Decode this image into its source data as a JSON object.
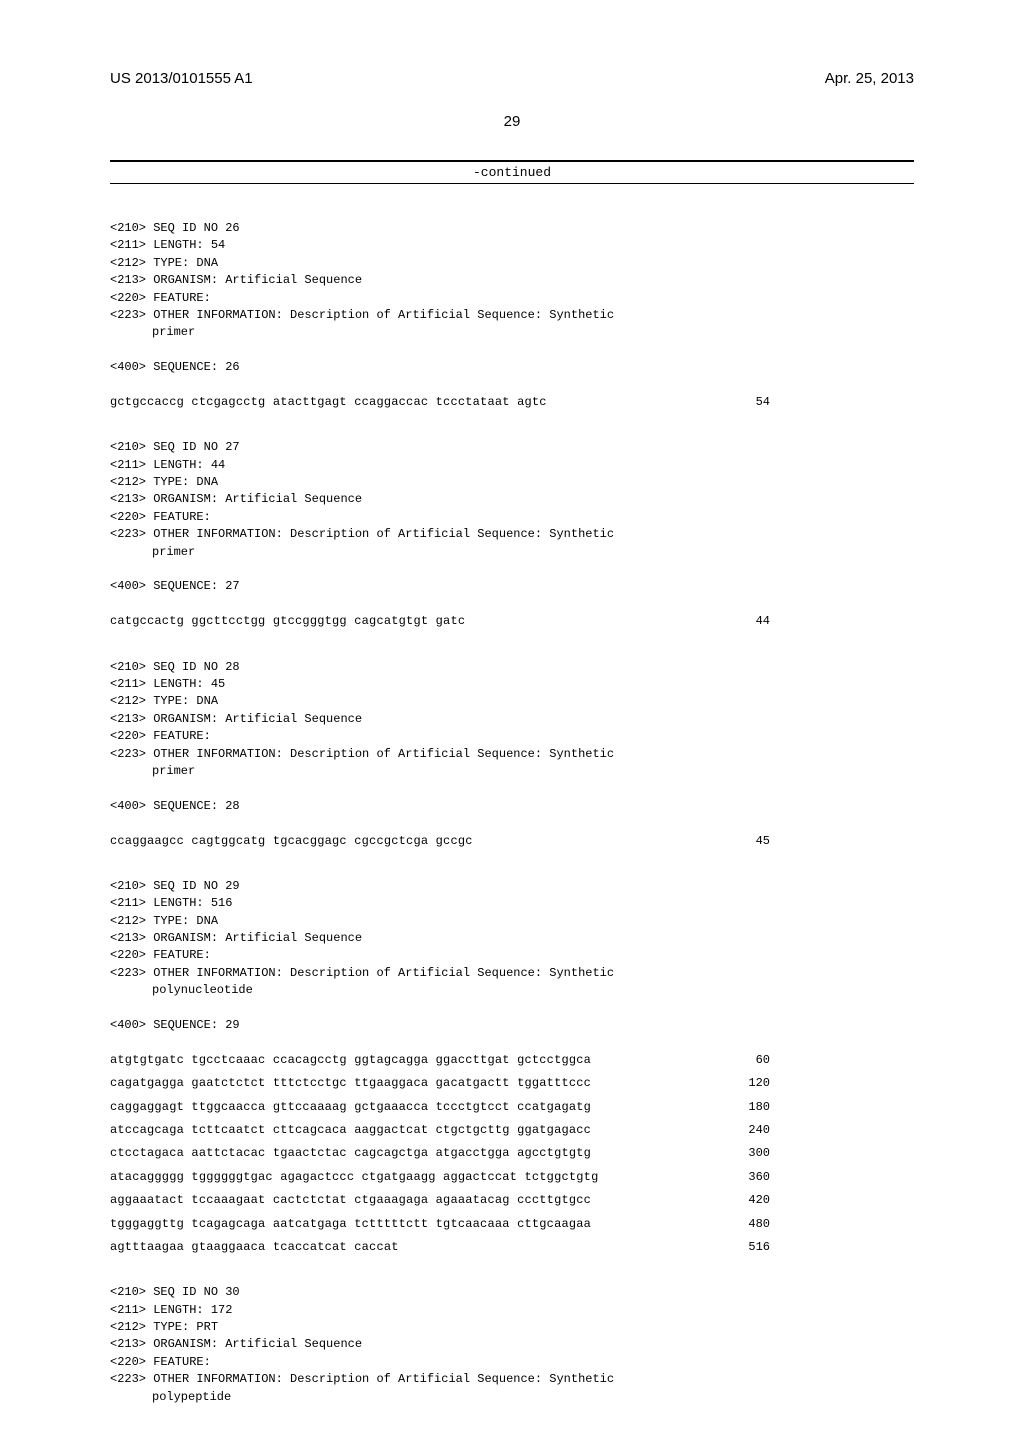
{
  "header": {
    "publication_number": "US 2013/0101555 A1",
    "publication_date": "Apr. 25, 2013"
  },
  "page_number": "29",
  "continued_label": "-continued",
  "entries": [
    {
      "meta": {
        "seq_id": "<210> SEQ ID NO 26",
        "length": "<211> LENGTH: 54",
        "type": "<212> TYPE: DNA",
        "organism": "<213> ORGANISM: Artificial Sequence",
        "feature": "<220> FEATURE:",
        "other_info": "<223> OTHER INFORMATION: Description of Artificial Sequence: Synthetic",
        "other_info_cont": "primer"
      },
      "seq_header": "<400> SEQUENCE: 26",
      "rows": [
        {
          "seq": "gctgccaccg ctcgagcctg atacttgagt ccaggaccac tccctataat agtc",
          "pos": "54"
        }
      ]
    },
    {
      "meta": {
        "seq_id": "<210> SEQ ID NO 27",
        "length": "<211> LENGTH: 44",
        "type": "<212> TYPE: DNA",
        "organism": "<213> ORGANISM: Artificial Sequence",
        "feature": "<220> FEATURE:",
        "other_info": "<223> OTHER INFORMATION: Description of Artificial Sequence: Synthetic",
        "other_info_cont": "primer"
      },
      "seq_header": "<400> SEQUENCE: 27",
      "rows": [
        {
          "seq": "catgccactg ggcttcctgg gtccgggtgg cagcatgtgt gatc",
          "pos": "44"
        }
      ]
    },
    {
      "meta": {
        "seq_id": "<210> SEQ ID NO 28",
        "length": "<211> LENGTH: 45",
        "type": "<212> TYPE: DNA",
        "organism": "<213> ORGANISM: Artificial Sequence",
        "feature": "<220> FEATURE:",
        "other_info": "<223> OTHER INFORMATION: Description of Artificial Sequence: Synthetic",
        "other_info_cont": "primer"
      },
      "seq_header": "<400> SEQUENCE: 28",
      "rows": [
        {
          "seq": "ccaggaagcc cagtggcatg tgcacggagc cgccgctcga gccgc",
          "pos": "45"
        }
      ]
    },
    {
      "meta": {
        "seq_id": "<210> SEQ ID NO 29",
        "length": "<211> LENGTH: 516",
        "type": "<212> TYPE: DNA",
        "organism": "<213> ORGANISM: Artificial Sequence",
        "feature": "<220> FEATURE:",
        "other_info": "<223> OTHER INFORMATION: Description of Artificial Sequence: Synthetic",
        "other_info_cont": "polynucleotide"
      },
      "seq_header": "<400> SEQUENCE: 29",
      "rows": [
        {
          "seq": "atgtgtgatc tgcctcaaac ccacagcctg ggtagcagga ggaccttgat gctcctggca",
          "pos": "60"
        },
        {
          "seq": "cagatgagga gaatctctct tttctcctgc ttgaaggaca gacatgactt tggatttccc",
          "pos": "120"
        },
        {
          "seq": "caggaggagt ttggcaacca gttccaaaag gctgaaacca tccctgtcct ccatgagatg",
          "pos": "180"
        },
        {
          "seq": "atccagcaga tcttcaatct cttcagcaca aaggactcat ctgctgcttg ggatgagacc",
          "pos": "240"
        },
        {
          "seq": "ctcctagaca aattctacac tgaactctac cagcagctga atgacctgga agcctgtgtg",
          "pos": "300"
        },
        {
          "seq": "atacaggggg tggggggtgac agagactccc ctgatgaagg aggactccat tctggctgtg",
          "pos": "360"
        },
        {
          "seq": "aggaaatact tccaaagaat cactctctat ctgaaagaga agaaatacag cccttgtgcc",
          "pos": "420"
        },
        {
          "seq": "tgggaggttg tcagagcaga aatcatgaga tctttttctt tgtcaacaaa cttgcaagaa",
          "pos": "480"
        },
        {
          "seq": "agtttaagaa gtaaggaaca tcaccatcat caccat",
          "pos": "516"
        }
      ]
    },
    {
      "meta": {
        "seq_id": "<210> SEQ ID NO 30",
        "length": "<211> LENGTH: 172",
        "type": "<212> TYPE: PRT",
        "organism": "<213> ORGANISM: Artificial Sequence",
        "feature": "<220> FEATURE:",
        "other_info": "<223> OTHER INFORMATION: Description of Artificial Sequence: Synthetic",
        "other_info_cont": "polypeptide"
      },
      "seq_header": "",
      "rows": []
    }
  ],
  "style": {
    "font_mono": "Courier New",
    "font_sans": "Arial",
    "font_size_body": 12,
    "font_size_header": 15,
    "background": "#ffffff",
    "rule_color": "#000000",
    "seq_col_width": 660
  }
}
